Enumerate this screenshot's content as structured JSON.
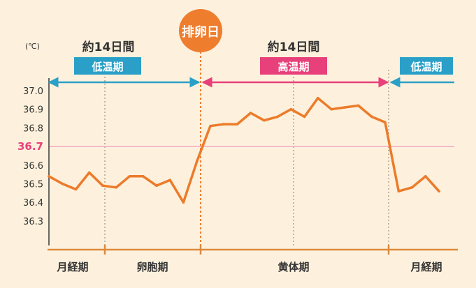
{
  "chart_data": {
    "type": "line",
    "unit": "(℃)",
    "yticks": [
      37.0,
      36.9,
      36.8,
      36.7,
      36.6,
      36.5,
      36.4,
      36.3
    ],
    "ylim": [
      36.2,
      37.05
    ],
    "highlight": {
      "value": 36.7,
      "label": "36.7"
    },
    "ovulation_label": "排卵日",
    "periods": [
      {
        "duration": "約14日間",
        "label": "低温期",
        "color": "#2aa0c8"
      },
      {
        "duration": "約14日間",
        "label": "高温期",
        "color": "#e8407a"
      },
      {
        "duration": "",
        "label": "低温期",
        "color": "#2aa0c8"
      }
    ],
    "phases": [
      "月経期",
      "卵胞期",
      "黄体期",
      "月経期"
    ],
    "series": [
      {
        "values": [
          36.54,
          36.5,
          36.47,
          36.56,
          36.49,
          36.48,
          36.54,
          36.54,
          36.49,
          36.52,
          36.4,
          36.62,
          36.81,
          36.82,
          36.82,
          36.88,
          36.84,
          36.86,
          36.9,
          36.86,
          36.96,
          36.9,
          36.91,
          36.92,
          36.86,
          36.83,
          36.46,
          36.48,
          36.54,
          36.46
        ]
      }
    ],
    "colors": {
      "background": "#fdf1dd",
      "line": "#ec7b2a",
      "highlight": "#e8407a",
      "highlight_line": "#f2a9c1",
      "grid": "#8a7a6a",
      "axis": "#dc8a3c",
      "text": "#333333",
      "ovulation": "#ee7d2e"
    }
  }
}
